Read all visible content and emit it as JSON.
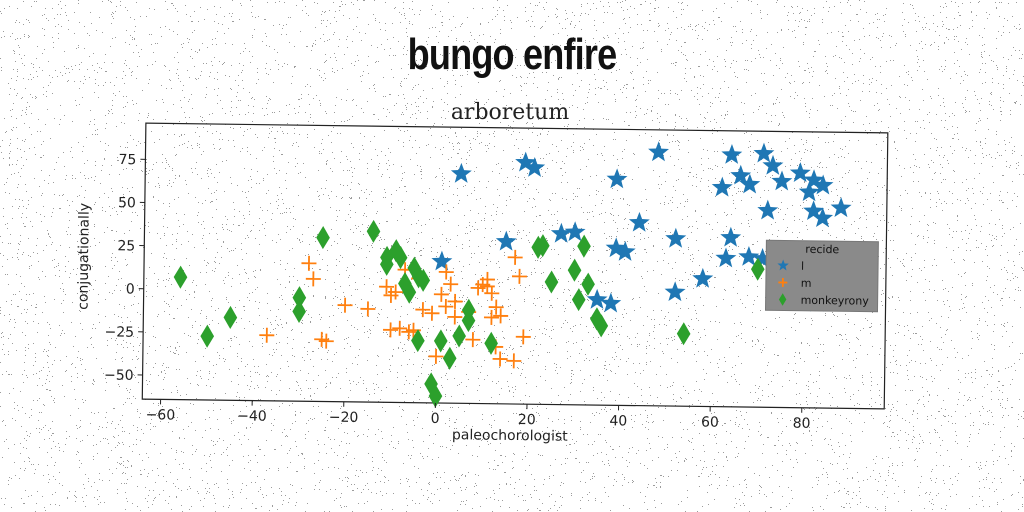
{
  "page": {
    "title": "bungo enfire"
  },
  "chart_data": {
    "type": "scatter",
    "title": "arboretum",
    "xlabel": "paleochorologist",
    "ylabel": "conjugationally",
    "xlim": [
      -64,
      98
    ],
    "ylim": [
      -64,
      96
    ],
    "xticks": [
      -60,
      -40,
      -20,
      0,
      20,
      40,
      60,
      80
    ],
    "yticks": [
      -50,
      -25,
      0,
      25,
      50,
      75
    ],
    "grid": false,
    "legend": {
      "title": "recide",
      "placement": "right",
      "background": "#888888"
    },
    "series": [
      {
        "name": "l",
        "marker": "star",
        "color": "#1f77b4",
        "points": [
          [
            5,
            69
          ],
          [
            19,
            76
          ],
          [
            21,
            73
          ],
          [
            48,
            83
          ],
          [
            39,
            67
          ],
          [
            64,
            82
          ],
          [
            71,
            83
          ],
          [
            73,
            76
          ],
          [
            66,
            70
          ],
          [
            68,
            65
          ],
          [
            62,
            63
          ],
          [
            75,
            67
          ],
          [
            79,
            72
          ],
          [
            81,
            61
          ],
          [
            82,
            68
          ],
          [
            84,
            65
          ],
          [
            72,
            50
          ],
          [
            82,
            50
          ],
          [
            84,
            46
          ],
          [
            88,
            52
          ],
          [
            44,
            42
          ],
          [
            52,
            33
          ],
          [
            64,
            34
          ],
          [
            27,
            35
          ],
          [
            30,
            36
          ],
          [
            39,
            27
          ],
          [
            41,
            25
          ],
          [
            63,
            22
          ],
          [
            68,
            23
          ],
          [
            71,
            22
          ],
          [
            58,
            10
          ],
          [
            52,
            2
          ],
          [
            35,
            -3
          ],
          [
            38,
            -5
          ],
          [
            15,
            30
          ],
          [
            1,
            18
          ],
          [
            76,
            22
          ],
          [
            80,
            24
          ],
          [
            85,
            10
          ],
          [
            90,
            0
          ],
          [
            83,
            -3
          ]
        ]
      },
      {
        "name": "m",
        "marker": "plus",
        "color": "#ff7f0e",
        "points": [
          [
            -28,
            16
          ],
          [
            -27,
            7
          ],
          [
            -37,
            -26
          ],
          [
            -25,
            -28
          ],
          [
            -24,
            -29
          ],
          [
            -20,
            -8
          ],
          [
            -15,
            -10
          ],
          [
            -11,
            3
          ],
          [
            -10,
            -2
          ],
          [
            -9,
            0
          ],
          [
            -10,
            -22
          ],
          [
            -8,
            -21
          ],
          [
            -6,
            -23
          ],
          [
            -5,
            -22
          ],
          [
            -7,
            13
          ],
          [
            -4,
            8
          ],
          [
            -3,
            -10
          ],
          [
            -1,
            -12
          ],
          [
            1,
            -1
          ],
          [
            0,
            -37
          ],
          [
            2,
            12
          ],
          [
            3,
            5
          ],
          [
            4,
            -5
          ],
          [
            4,
            -14
          ],
          [
            7,
            -11
          ],
          [
            8,
            -27
          ],
          [
            9,
            3
          ],
          [
            10,
            5
          ],
          [
            11,
            8
          ],
          [
            12,
            0
          ],
          [
            11,
            4
          ],
          [
            12,
            -14
          ],
          [
            13,
            -8
          ],
          [
            13,
            -31
          ],
          [
            14,
            -38
          ],
          [
            17,
            -39
          ],
          [
            17,
            21
          ],
          [
            18,
            10
          ],
          [
            19,
            -25
          ],
          [
            14,
            -13
          ],
          [
            2,
            -8
          ]
        ]
      },
      {
        "name": "monkeyrony",
        "marker": "diamond",
        "color": "#2ca02c",
        "points": [
          [
            -56,
            7
          ],
          [
            -50,
            -27
          ],
          [
            -45,
            -16
          ],
          [
            -25,
            31
          ],
          [
            -30,
            -4
          ],
          [
            -30,
            -12
          ],
          [
            -14,
            35
          ],
          [
            -11,
            20
          ],
          [
            -11,
            16
          ],
          [
            -9,
            24
          ],
          [
            -8,
            20
          ],
          [
            -7,
            5
          ],
          [
            -5,
            14
          ],
          [
            -4,
            9
          ],
          [
            -3,
            7
          ],
          [
            -4,
            -28
          ],
          [
            -6,
            0
          ],
          [
            -1,
            -53
          ],
          [
            1,
            -28
          ],
          [
            3,
            -38
          ],
          [
            5,
            -25
          ],
          [
            7,
            -10
          ],
          [
            7,
            -16
          ],
          [
            12,
            -29
          ],
          [
            22,
            27
          ],
          [
            23,
            28
          ],
          [
            25,
            7
          ],
          [
            30,
            14
          ],
          [
            31,
            -3
          ],
          [
            32,
            28
          ],
          [
            33,
            6
          ],
          [
            35,
            -14
          ],
          [
            36,
            -18
          ],
          [
            54,
            -22
          ],
          [
            70,
            16
          ],
          [
            0,
            -60
          ]
        ]
      }
    ]
  }
}
